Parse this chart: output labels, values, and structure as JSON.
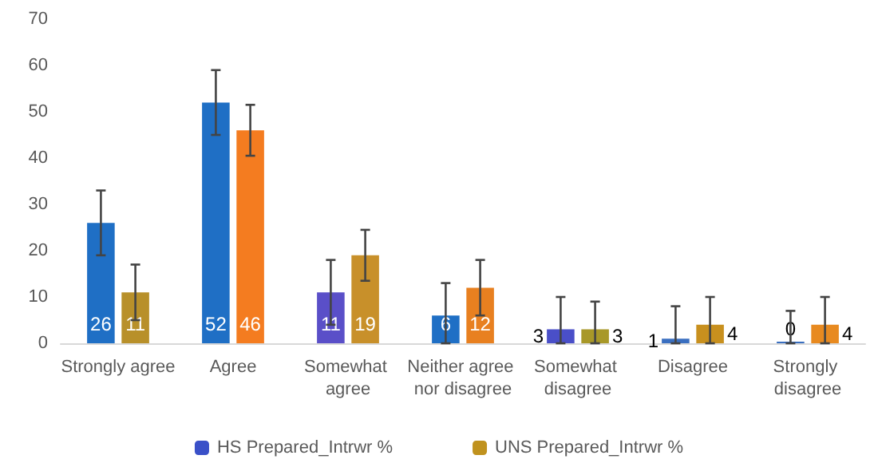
{
  "chart_data": {
    "type": "bar",
    "categories": [
      "Strongly agree",
      "Agree",
      "Somewhat agree",
      "Neither agree nor disagree",
      "Somewhat disagree",
      "Disagree",
      "Strongly disagree"
    ],
    "series": [
      {
        "name": "HS Prepared_Intrwr %",
        "color": "#3a50c8",
        "values": [
          26,
          52,
          11,
          6,
          3,
          1,
          0
        ],
        "colors": [
          "#1f6fc5",
          "#1f6fc5",
          "#5a4fc8",
          "#1f6fc5",
          "#4a4fc8",
          "#3a6fc0",
          "#3a6fc0"
        ],
        "errors": [
          7,
          7,
          7,
          [
            0,
            13
          ],
          [
            0,
            10
          ],
          [
            0,
            8
          ],
          [
            0,
            7
          ]
        ]
      },
      {
        "name": "UNS Prepared_Intrwr %",
        "color": "#c0921e",
        "values": [
          11,
          46,
          19,
          12,
          3,
          4,
          4
        ],
        "colors": [
          "#b8902a",
          "#f47c20",
          "#c8902a",
          "#e88020",
          "#a89828",
          "#c8901e",
          "#e88a20"
        ],
        "errors": [
          6,
          5.5,
          5.5,
          6,
          [
            0,
            9
          ],
          [
            0,
            10
          ],
          [
            0,
            10
          ]
        ]
      }
    ],
    "ylim": [
      0,
      70
    ],
    "yticks": [
      0,
      10,
      20,
      30,
      40,
      50,
      60,
      70
    ],
    "data_labels": true,
    "grid": false,
    "legend": "bottom"
  }
}
